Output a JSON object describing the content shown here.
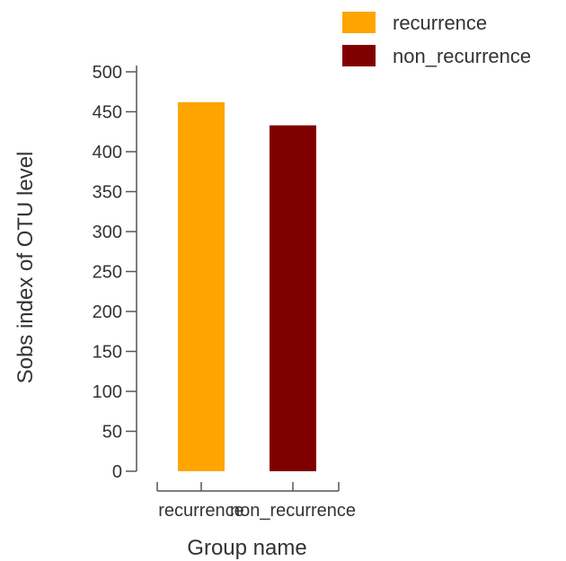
{
  "chart_data": {
    "type": "bar",
    "categories": [
      "recurrence",
      "non_recurrence"
    ],
    "series": [
      {
        "name": "recurrence",
        "values": [
          462,
          null
        ],
        "color": "#FFA500"
      },
      {
        "name": "non_recurrence",
        "values": [
          null,
          433
        ],
        "color": "#800000"
      }
    ],
    "values": [
      462,
      433
    ],
    "colors": [
      "#FFA500",
      "#800000"
    ],
    "xlabel": "Group name",
    "ylabel": "Sobs index of OTU level",
    "ylim": [
      0,
      500
    ],
    "yticks": [
      0,
      50,
      100,
      150,
      200,
      250,
      300,
      350,
      400,
      450,
      500
    ],
    "legend": {
      "position": "top-right",
      "items": [
        {
          "label": "recurrence",
          "color": "#FFA500"
        },
        {
          "label": "non_recurrence",
          "color": "#800000"
        }
      ]
    },
    "grid": false
  }
}
